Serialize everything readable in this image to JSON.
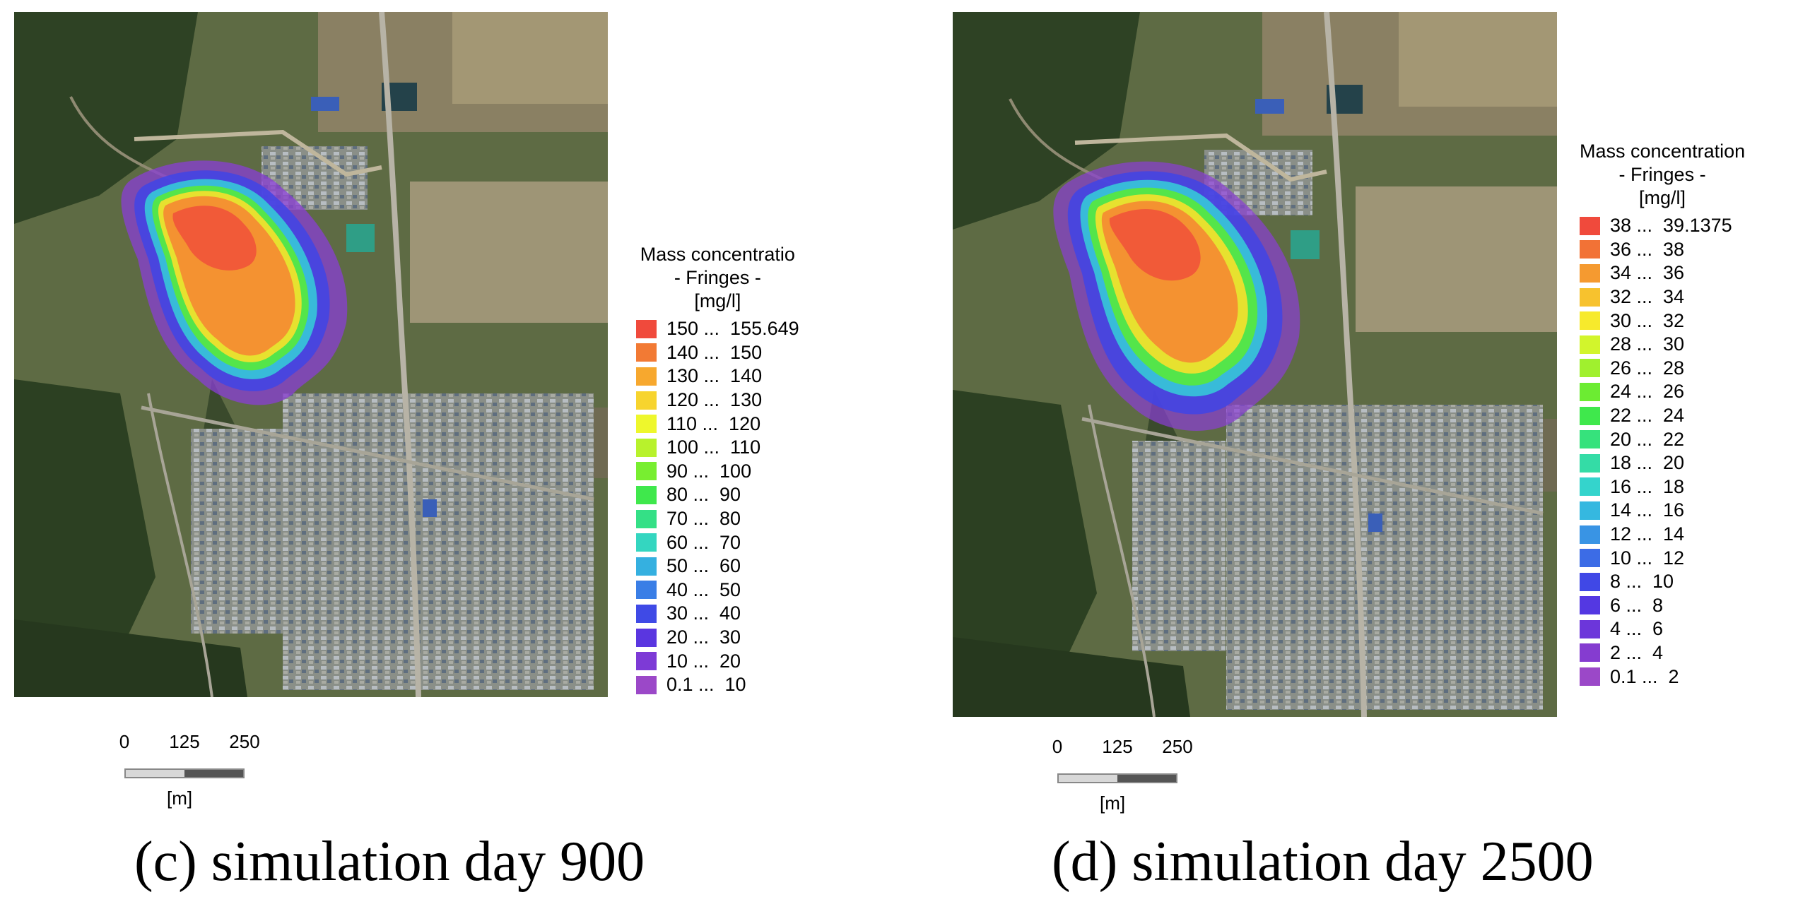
{
  "panels": [
    {
      "id": "c",
      "caption": "(c) simulation day 900",
      "legend": {
        "title_line1": "Mass concentratio",
        "title_line2": "- Fringes -",
        "unit": "[mg/l]",
        "items": [
          {
            "range": "150 ...  155.649",
            "color": "#f04a3c"
          },
          {
            "range": "140 ...  150",
            "color": "#f27a34"
          },
          {
            "range": "130 ...  140",
            "color": "#f7a82e"
          },
          {
            "range": "120 ...  130",
            "color": "#f7d42e"
          },
          {
            "range": "110 ...  120",
            "color": "#eef72c"
          },
          {
            "range": "100 ...  110",
            "color": "#b8f22c"
          },
          {
            "range": "90 ...  100",
            "color": "#78ee30"
          },
          {
            "range": "80 ...  90",
            "color": "#3fe84c"
          },
          {
            "range": "70 ...  80",
            "color": "#34e086"
          },
          {
            "range": "60 ...  70",
            "color": "#34d6c0"
          },
          {
            "range": "50 ...  60",
            "color": "#35b0e0"
          },
          {
            "range": "40 ...  50",
            "color": "#3a7ee6"
          },
          {
            "range": "30 ...  40",
            "color": "#3f4ae6"
          },
          {
            "range": "20 ...  30",
            "color": "#5a36e0"
          },
          {
            "range": "10 ...  20",
            "color": "#7d3ad6"
          },
          {
            "range": "0.1 ...  10",
            "color": "#9b48c8"
          }
        ]
      },
      "scale": {
        "tick0": "0",
        "tick1": "125",
        "tick2": "250",
        "unit": "[m]"
      }
    },
    {
      "id": "d",
      "caption": "(d) simulation day 2500",
      "legend": {
        "title_line1": "Mass concentration",
        "title_line2": "- Fringes -",
        "unit": "[mg/l]",
        "items": [
          {
            "range": "38 ...  39.1375",
            "color": "#f04a3c"
          },
          {
            "range": "36 ...  38",
            "color": "#f27236"
          },
          {
            "range": "34 ...  36",
            "color": "#f59a30"
          },
          {
            "range": "32 ...  34",
            "color": "#f7c22e"
          },
          {
            "range": "30 ...  32",
            "color": "#f7ea2c"
          },
          {
            "range": "28 ...  30",
            "color": "#d2f52c"
          },
          {
            "range": "26 ...  28",
            "color": "#a0f02e"
          },
          {
            "range": "24 ...  26",
            "color": "#6cec32"
          },
          {
            "range": "22 ...  24",
            "color": "#3fe84c"
          },
          {
            "range": "20 ...  22",
            "color": "#36e27c"
          },
          {
            "range": "18 ...  20",
            "color": "#34dca6"
          },
          {
            "range": "16 ...  18",
            "color": "#34d4cc"
          },
          {
            "range": "14 ...  16",
            "color": "#35b8e0"
          },
          {
            "range": "12 ...  14",
            "color": "#3994e4"
          },
          {
            "range": "10 ...  12",
            "color": "#3c6ce6"
          },
          {
            "range": "8 ...  10",
            "color": "#4048e6"
          },
          {
            "range": "6 ...  8",
            "color": "#5438e2"
          },
          {
            "range": "4 ...  6",
            "color": "#6c36da"
          },
          {
            "range": "2 ...  4",
            "color": "#853cd0"
          },
          {
            "range": "0.1 ...  2",
            "color": "#9b48c8"
          }
        ]
      },
      "scale": {
        "tick0": "0",
        "tick1": "125",
        "tick2": "250",
        "unit": "[m]"
      }
    }
  ]
}
